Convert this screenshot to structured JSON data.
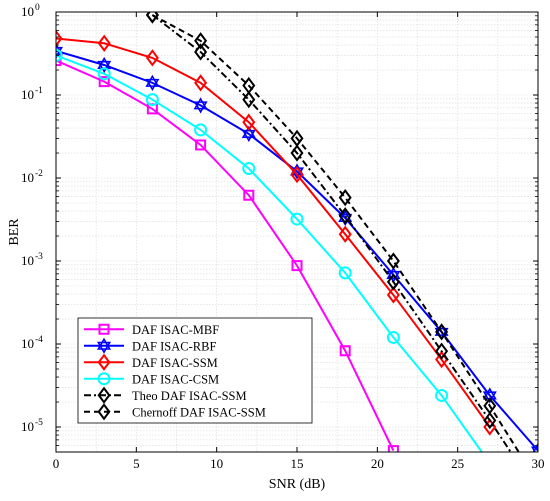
{
  "chart_data": {
    "type": "line",
    "xlabel": "SNR (dB)",
    "ylabel": "BER",
    "xlim": [
      0,
      30
    ],
    "ylim": [
      5e-06,
      1
    ],
    "yscale": "log",
    "grid": true,
    "legend_position": "bottom-left",
    "x_ticks": [
      "0",
      "5",
      "10",
      "15",
      "20",
      "25",
      "30"
    ],
    "y_ticks": [
      {
        "base": "10",
        "exp": "0"
      },
      {
        "base": "10",
        "exp": "-1"
      },
      {
        "base": "10",
        "exp": "-2"
      },
      {
        "base": "10",
        "exp": "-3"
      },
      {
        "base": "10",
        "exp": "-4"
      },
      {
        "base": "10",
        "exp": "-5"
      }
    ],
    "series": [
      {
        "name": "DAF ISAC-MBF",
        "color": "#ff00ff",
        "marker": "square",
        "dash": "solid",
        "x": [
          0,
          3,
          6,
          9,
          12,
          15,
          18,
          21
        ],
        "y": [
          0.26,
          0.145,
          0.068,
          0.025,
          0.0062,
          0.00088,
          8.3e-05,
          5.2e-06
        ]
      },
      {
        "name": "DAF ISAC-RBF",
        "color": "#0000ff",
        "marker": "hexagram",
        "dash": "solid",
        "x": [
          0,
          3,
          6,
          9,
          12,
          15,
          18,
          21,
          24,
          27,
          30
        ],
        "y": [
          0.34,
          0.23,
          0.14,
          0.075,
          0.034,
          0.012,
          0.0033,
          0.00068,
          0.00014,
          2.4e-05,
          5.2e-06
        ]
      },
      {
        "name": "DAF ISAC-SSM",
        "color": "#ff0000",
        "marker": "diamond",
        "dash": "solid",
        "x": [
          0,
          3,
          6,
          9,
          12,
          15,
          18,
          21,
          24,
          27
        ],
        "y": [
          0.48,
          0.42,
          0.28,
          0.14,
          0.047,
          0.011,
          0.0021,
          0.00039,
          6.5e-05,
          1e-05
        ]
      },
      {
        "name": "DAF ISAC-CSM",
        "color": "#00ffff",
        "marker": "circle",
        "dash": "solid",
        "x": [
          0,
          3,
          6,
          9,
          12,
          15,
          18,
          21,
          24,
          26.5
        ],
        "y": [
          0.3,
          0.18,
          0.088,
          0.038,
          0.013,
          0.0032,
          0.00072,
          0.00012,
          2.4e-05,
          5e-06
        ]
      },
      {
        "name": "Theo DAF ISAC-SSM",
        "color": "#000000",
        "marker": "diamond",
        "dash": "dashdot",
        "x": [
          6,
          9,
          12,
          15,
          18,
          21,
          24,
          27,
          28.3
        ],
        "y": [
          0.92,
          0.33,
          0.088,
          0.02,
          0.0035,
          0.00056,
          8.2e-05,
          1.2e-05,
          5e-06
        ]
      },
      {
        "name": "Chernoff DAF ISAC-SSM",
        "color": "#000000",
        "marker": "diamond",
        "dash": "dashed",
        "x": [
          6,
          9,
          12,
          15,
          18,
          21,
          24,
          27,
          28.8
        ],
        "y": [
          0.92,
          0.45,
          0.13,
          0.03,
          0.0058,
          0.001,
          0.00014,
          1.8e-05,
          5e-06
        ]
      }
    ]
  }
}
